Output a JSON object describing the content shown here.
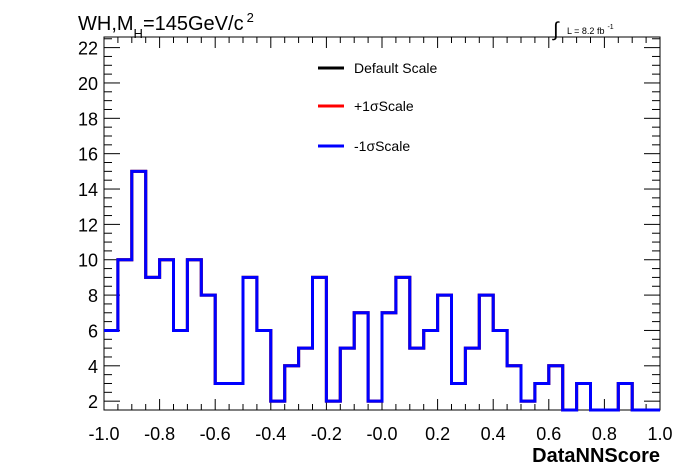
{
  "chart_data": {
    "type": "histogram",
    "title_main": "WH,M",
    "title_sub": "H",
    "title_rest": "=145GeV/c",
    "title_sup": "2",
    "lumi_integral": "∫",
    "lumi_text": "L = 8.2 fb",
    "lumi_sup": "-1",
    "xlabel": "DataNNScore",
    "ylabel": "",
    "xlim": [
      -1.0,
      1.0
    ],
    "ylim": [
      1.5,
      22.6
    ],
    "x_ticks": [
      -1.0,
      -0.8,
      -0.6,
      -0.4,
      -0.2,
      0.0,
      0.2,
      0.4,
      0.6,
      0.8,
      1.0
    ],
    "x_tick_labels": [
      "-1.0",
      "-0.8",
      "-0.6",
      "-0.4",
      "-0.2",
      "-0.0",
      "0.2",
      "0.4",
      "0.6",
      "0.8",
      "1.0"
    ],
    "y_ticks": [
      2,
      4,
      6,
      8,
      10,
      12,
      14,
      16,
      18,
      20,
      22
    ],
    "y_tick_labels": [
      "2",
      "4",
      "6",
      "8",
      "10",
      "12",
      "14",
      "16",
      "18",
      "20",
      "22"
    ],
    "bin_edges": [
      -1.0,
      -0.95,
      -0.9,
      -0.85,
      -0.8,
      -0.75,
      -0.7,
      -0.65,
      -0.6,
      -0.55,
      -0.5,
      -0.45,
      -0.4,
      -0.35,
      -0.3,
      -0.25,
      -0.2,
      -0.15,
      -0.1,
      -0.05,
      0.0,
      0.05,
      0.1,
      0.15,
      0.2,
      0.25,
      0.3,
      0.35,
      0.4,
      0.45,
      0.5,
      0.55,
      0.6,
      0.65,
      0.7,
      0.75,
      0.8,
      0.85,
      0.9,
      0.95,
      1.0
    ],
    "series": [
      {
        "name": "Default Scale",
        "color": "#000000",
        "values": [
          6,
          10,
          15,
          9,
          10,
          6,
          10,
          8,
          3,
          3,
          9,
          6,
          2,
          4,
          5,
          9,
          2,
          5,
          7,
          2,
          7,
          9,
          5,
          6,
          8,
          3,
          5,
          8,
          6,
          4,
          2,
          3,
          4,
          1.5,
          3,
          1.5,
          1.5,
          3,
          1.5,
          1.5
        ]
      },
      {
        "name": "+1σScale",
        "color": "#ff0000",
        "values": [
          6,
          10,
          15,
          9,
          10,
          6,
          10,
          8,
          3,
          3,
          9,
          6,
          2,
          4,
          5,
          9,
          2,
          5,
          7,
          2,
          7,
          9,
          5,
          6,
          8,
          3,
          5,
          8,
          6,
          4,
          2,
          3,
          4,
          1.5,
          3,
          1.5,
          1.5,
          3,
          1.5,
          1.5
        ]
      },
      {
        "name": "-1σScale",
        "color": "#0000ff",
        "values": [
          6,
          10,
          15,
          9,
          10,
          6,
          10,
          8,
          3,
          3,
          9,
          6,
          2,
          4,
          5,
          9,
          2,
          5,
          7,
          2,
          7,
          9,
          5,
          6,
          8,
          3,
          5,
          8,
          6,
          4,
          2,
          3,
          4,
          1.5,
          3,
          1.5,
          1.5,
          3,
          1.5,
          1.5
        ]
      }
    ],
    "legend_placement": "top-center",
    "grid": false
  }
}
